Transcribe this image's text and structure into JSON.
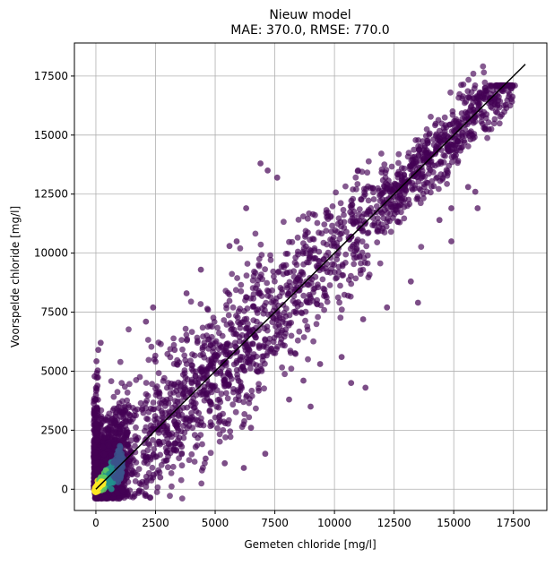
{
  "chart_data": {
    "type": "scatter",
    "title": "Nieuw model",
    "subtitle": "MAE: 370.0, RMSE: 770.0",
    "xlabel": "Gemeten chloride [mg/l]",
    "ylabel": "Voorspelde chloride [mg/l]",
    "xlim": [
      -900,
      18900
    ],
    "ylim": [
      -900,
      18900
    ],
    "x_ticks": [
      0,
      2500,
      5000,
      7500,
      10000,
      12500,
      15000,
      17500
    ],
    "y_ticks": [
      0,
      2500,
      5000,
      7500,
      10000,
      12500,
      15000,
      17500
    ],
    "grid": true,
    "colormap": "viridis",
    "colormap_stops": [
      "#440154",
      "#3b528b",
      "#21918c",
      "#5ec962",
      "#fde725"
    ],
    "point_color": "#440154",
    "reference_line": {
      "x": [
        0,
        18000
      ],
      "y": [
        0,
        18000
      ],
      "color": "#000000"
    },
    "clusters": [
      {
        "x_range": [
          0,
          2000
        ],
        "y_spread": 1300,
        "count": 1400,
        "density": "high"
      },
      {
        "x_range": [
          2000,
          7000
        ],
        "y_spread": 1500,
        "count": 700,
        "density": "medium"
      },
      {
        "x_range": [
          7000,
          12000
        ],
        "y_spread": 1300,
        "count": 450,
        "density": "low"
      },
      {
        "x_range": [
          12000,
          17500
        ],
        "y_spread": 700,
        "count": 600,
        "density": "medium"
      }
    ],
    "outliers": [
      [
        6900,
        13800
      ],
      [
        7200,
        13500
      ],
      [
        7600,
        13200
      ],
      [
        6300,
        11900
      ],
      [
        5900,
        10500
      ],
      [
        5600,
        10300
      ],
      [
        4400,
        9300
      ],
      [
        3800,
        8300
      ],
      [
        2400,
        7700
      ],
      [
        2100,
        7100
      ],
      [
        200,
        6200
      ],
      [
        100,
        5900
      ],
      [
        3300,
        5900
      ],
      [
        10300,
        5600
      ],
      [
        8700,
        4600
      ],
      [
        9000,
        3500
      ],
      [
        9400,
        5300
      ],
      [
        11200,
        7200
      ],
      [
        13200,
        8800
      ],
      [
        14900,
        10500
      ],
      [
        14400,
        11400
      ],
      [
        15600,
        12800
      ],
      [
        15900,
        12600
      ],
      [
        16000,
        11900
      ],
      [
        11300,
        4300
      ],
      [
        10700,
        4500
      ],
      [
        7100,
        1500
      ],
      [
        6200,
        900
      ],
      [
        5400,
        1100
      ],
      [
        4600,
        1300
      ],
      [
        1900,
        200
      ],
      [
        2700,
        500
      ],
      [
        14900,
        11900
      ],
      [
        12200,
        7700
      ],
      [
        13500,
        7900
      ],
      [
        9700,
        9200
      ],
      [
        8100,
        3800
      ],
      [
        6500,
        2600
      ],
      [
        5200,
        2900
      ],
      [
        3600,
        1800
      ]
    ]
  }
}
